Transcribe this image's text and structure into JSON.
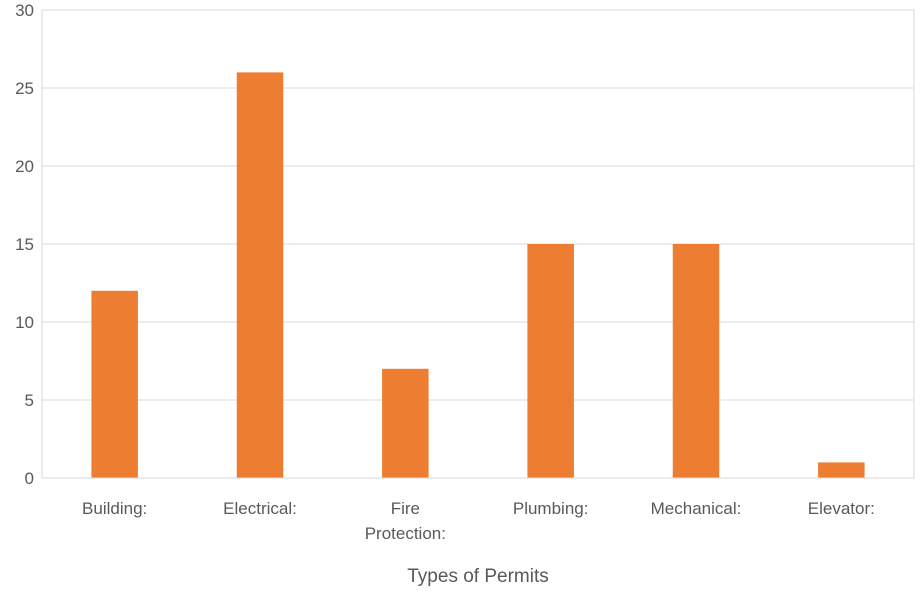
{
  "chart_data": {
    "type": "bar",
    "categories": [
      [
        "Building:"
      ],
      [
        "Electrical:"
      ],
      [
        "Fire",
        "Protection:"
      ],
      [
        "Plumbing:"
      ],
      [
        "Mechanical:"
      ],
      [
        "Elevator:"
      ]
    ],
    "values": [
      12,
      26,
      7,
      15,
      15,
      1
    ],
    "title": "",
    "xlabel": "Types of Permits",
    "ylabel": "",
    "ylim": [
      0,
      30
    ],
    "yticks": [
      0,
      5,
      10,
      15,
      20,
      25,
      30
    ],
    "grid": true,
    "legend": "none",
    "bar_color": "#ED7D31",
    "grid_color": "#D9D9D9"
  }
}
